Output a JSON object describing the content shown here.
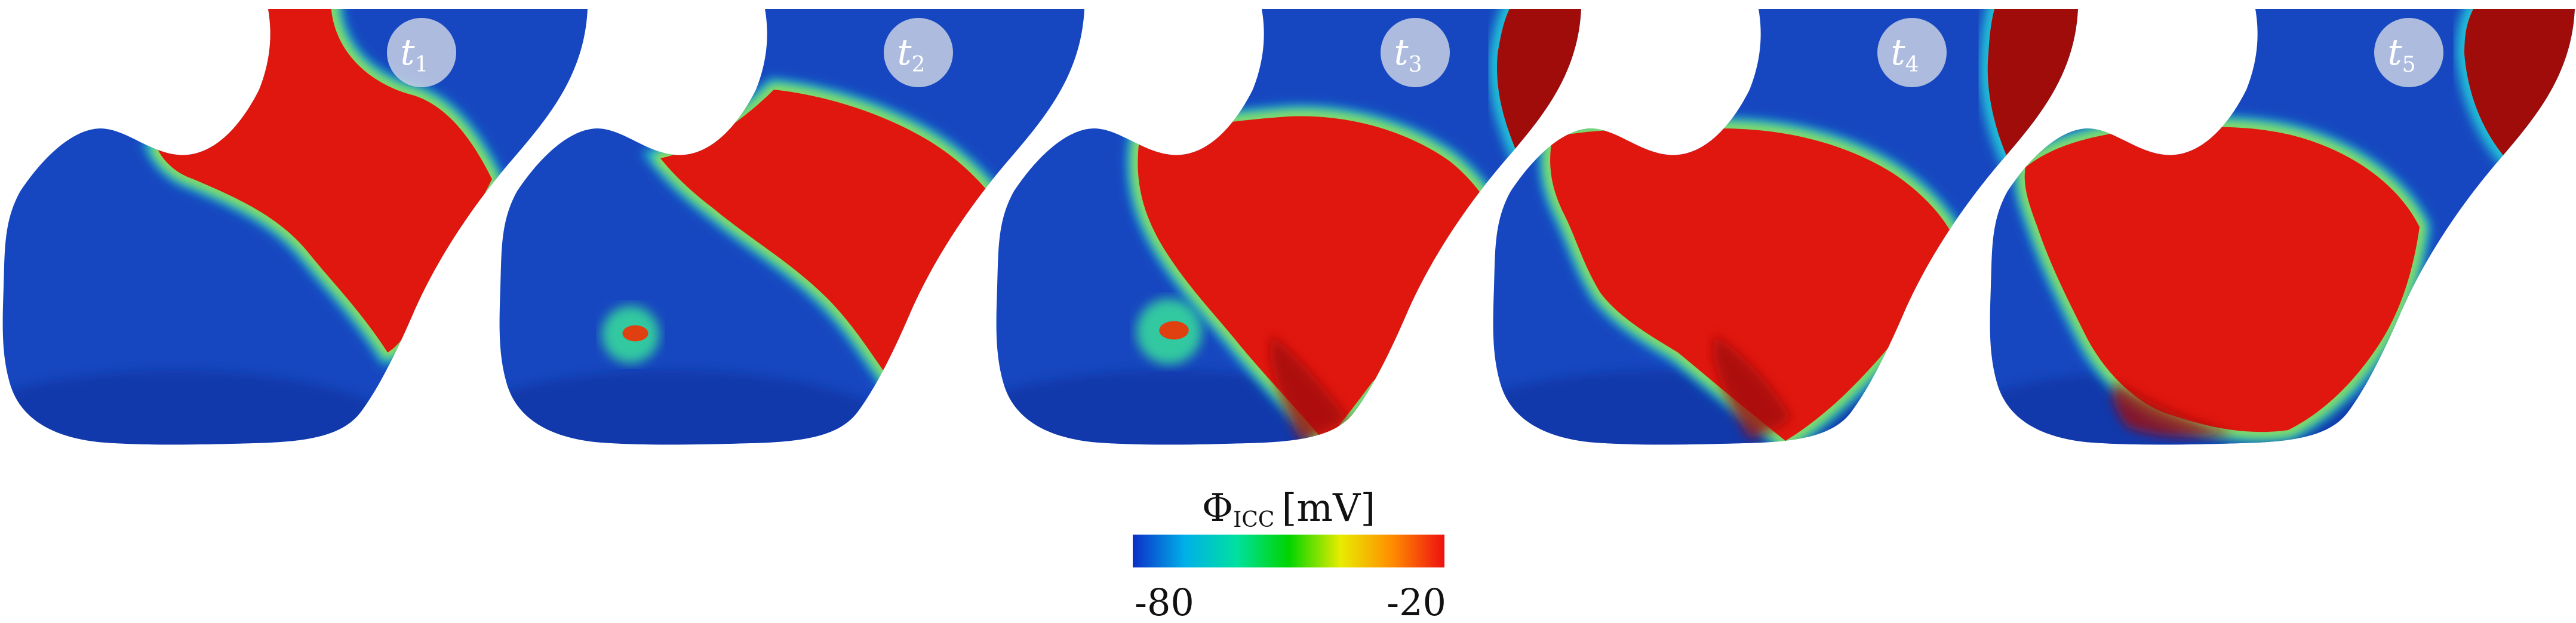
{
  "panels": [
    {
      "label_base": "t",
      "label_sub": "1"
    },
    {
      "label_base": "t",
      "label_sub": "2"
    },
    {
      "label_base": "t",
      "label_sub": "3"
    },
    {
      "label_base": "t",
      "label_sub": "4"
    },
    {
      "label_base": "t",
      "label_sub": "5"
    }
  ],
  "colorbar": {
    "title_symbol": "Φ",
    "title_subscript": "ICC",
    "title_unit": "[mV]",
    "min_label": "-80",
    "max_label": "-20",
    "colormap": [
      "#0b2fc9",
      "#00b0e8",
      "#00e0a0",
      "#00d400",
      "#e8ec00",
      "#ff8c00",
      "#ee1010"
    ]
  },
  "colors": {
    "resting": "#1747c0",
    "resting_dark": "#0d2f99",
    "activated": "#e0170f",
    "activated_dark": "#a00c0a",
    "label_circle": "#c8d0e4"
  }
}
